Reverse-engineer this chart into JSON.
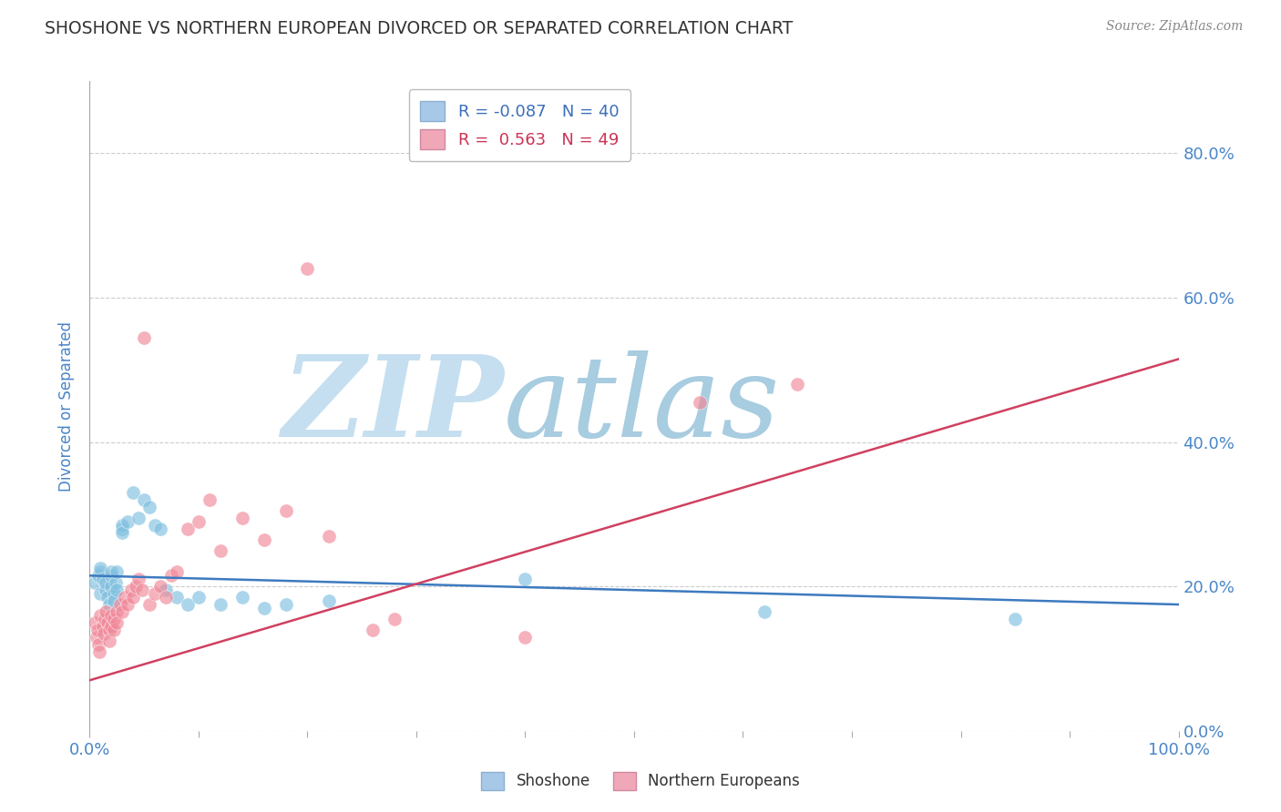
{
  "title": "SHOSHONE VS NORTHERN EUROPEAN DIVORCED OR SEPARATED CORRELATION CHART",
  "source_text": "Source: ZipAtlas.com",
  "ylabel": "Divorced or Separated",
  "xlim": [
    0.0,
    1.0
  ],
  "ylim": [
    0.0,
    0.9
  ],
  "xticks": [
    0.0,
    0.1,
    0.2,
    0.3,
    0.4,
    0.5,
    0.6,
    0.7,
    0.8,
    0.9,
    1.0
  ],
  "xtick_labels_major": {
    "0.0": "0.0%",
    "1.0": "100.0%"
  },
  "yticks": [
    0.0,
    0.2,
    0.4,
    0.6,
    0.8
  ],
  "ytick_labels": [
    "0.0%",
    "20.0%",
    "40.0%",
    "60.0%",
    "80.0%"
  ],
  "shoshone_color": "#7fbfdf",
  "shoshone_line_color": "#3d7abf",
  "ne_color": "#f08898",
  "ne_line_color": "#d04060",
  "shoshone_x": [
    0.005,
    0.008,
    0.01,
    0.01,
    0.01,
    0.012,
    0.015,
    0.015,
    0.016,
    0.018,
    0.02,
    0.02,
    0.02,
    0.022,
    0.022,
    0.024,
    0.025,
    0.025,
    0.03,
    0.03,
    0.03,
    0.035,
    0.04,
    0.045,
    0.05,
    0.055,
    0.06,
    0.065,
    0.07,
    0.08,
    0.09,
    0.1,
    0.12,
    0.14,
    0.16,
    0.18,
    0.22,
    0.4,
    0.62,
    0.85
  ],
  "shoshone_y": [
    0.205,
    0.215,
    0.19,
    0.22,
    0.225,
    0.21,
    0.195,
    0.205,
    0.185,
    0.175,
    0.2,
    0.215,
    0.22,
    0.19,
    0.18,
    0.205,
    0.195,
    0.22,
    0.28,
    0.285,
    0.275,
    0.29,
    0.33,
    0.295,
    0.32,
    0.31,
    0.285,
    0.28,
    0.195,
    0.185,
    0.175,
    0.185,
    0.175,
    0.185,
    0.17,
    0.175,
    0.18,
    0.21,
    0.165,
    0.155
  ],
  "ne_x": [
    0.005,
    0.006,
    0.007,
    0.008,
    0.009,
    0.01,
    0.012,
    0.013,
    0.014,
    0.015,
    0.016,
    0.018,
    0.018,
    0.02,
    0.02,
    0.022,
    0.022,
    0.025,
    0.025,
    0.028,
    0.03,
    0.032,
    0.035,
    0.038,
    0.04,
    0.042,
    0.045,
    0.048,
    0.05,
    0.055,
    0.06,
    0.065,
    0.07,
    0.075,
    0.08,
    0.09,
    0.1,
    0.11,
    0.12,
    0.14,
    0.16,
    0.18,
    0.2,
    0.22,
    0.26,
    0.28,
    0.4,
    0.56,
    0.65
  ],
  "ne_y": [
    0.15,
    0.13,
    0.14,
    0.12,
    0.11,
    0.16,
    0.145,
    0.135,
    0.155,
    0.165,
    0.15,
    0.14,
    0.125,
    0.16,
    0.145,
    0.155,
    0.14,
    0.165,
    0.15,
    0.175,
    0.165,
    0.185,
    0.175,
    0.195,
    0.185,
    0.2,
    0.21,
    0.195,
    0.545,
    0.175,
    0.19,
    0.2,
    0.185,
    0.215,
    0.22,
    0.28,
    0.29,
    0.32,
    0.25,
    0.295,
    0.265,
    0.305,
    0.64,
    0.27,
    0.14,
    0.155,
    0.13,
    0.455,
    0.48
  ],
  "blue_line_y0": 0.215,
  "blue_line_y1": 0.175,
  "pink_line_y0": 0.07,
  "pink_line_y1": 0.515,
  "watermark_zip": "ZIP",
  "watermark_atlas": "atlas",
  "watermark_color_zip": "#c5dff0",
  "watermark_color_atlas": "#a8cce0",
  "background_color": "#ffffff",
  "grid_color": "#cccccc",
  "title_color": "#333333",
  "tick_color": "#4a86c8",
  "legend_box_color1": "#a8c8e8",
  "legend_box_color2": "#f0a8b8",
  "legend_text_color1": "#cc0000",
  "legend_text_color2": "#cc0000"
}
